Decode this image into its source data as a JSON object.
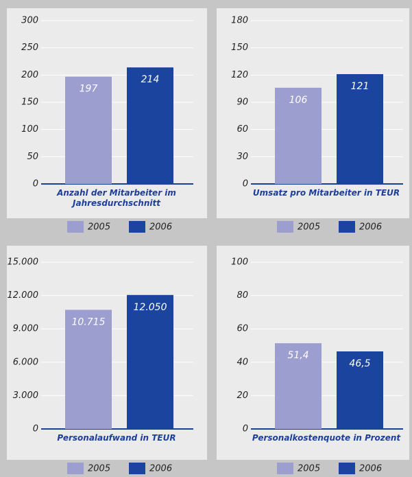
{
  "chart_data": [
    {
      "type": "bar",
      "title": "Anzahl der Mitarbeiter im Jahresdurchschnitt",
      "series": [
        {
          "name": "2005",
          "color": "#9c9ed0",
          "values": [
            197
          ]
        },
        {
          "name": "2006",
          "color": "#1b449e",
          "values": [
            214
          ]
        }
      ],
      "ylim": [
        0,
        300
      ],
      "yticks": [
        0,
        50,
        100,
        150,
        200,
        250,
        300
      ],
      "grid": true
    },
    {
      "type": "bar",
      "title": "Umsatz pro Mitarbeiter in TEUR",
      "series": [
        {
          "name": "2005",
          "color": "#9c9ed0",
          "values": [
            106
          ]
        },
        {
          "name": "2006",
          "color": "#1b449e",
          "values": [
            121
          ]
        }
      ],
      "ylim": [
        0,
        180
      ],
      "yticks": [
        0,
        30,
        60,
        90,
        120,
        150,
        180
      ],
      "grid": true
    },
    {
      "type": "bar",
      "title": "Personalaufwand in TEUR",
      "series": [
        {
          "name": "2005",
          "color": "#9c9ed0",
          "values": [
            10715
          ],
          "value_labels": [
            "10.715"
          ]
        },
        {
          "name": "2006",
          "color": "#1b449e",
          "values": [
            12050
          ],
          "value_labels": [
            "12.050"
          ]
        }
      ],
      "ylim": [
        0,
        15000
      ],
      "yticks": [
        0,
        {
          "value": 3000,
          "label": "3.000"
        },
        {
          "value": 6000,
          "label": "6.000"
        },
        {
          "value": 9000,
          "label": "9.000"
        },
        {
          "value": 12000,
          "label": "12.000"
        },
        {
          "value": 15000,
          "label": "15.000"
        }
      ],
      "grid": true
    },
    {
      "type": "bar",
      "title": "Personalkostenquote in Prozent",
      "series": [
        {
          "name": "2005",
          "color": "#9c9ed0",
          "values": [
            51.4
          ],
          "value_labels": [
            "51,4"
          ]
        },
        {
          "name": "2006",
          "color": "#1b449e",
          "values": [
            46.5
          ],
          "value_labels": [
            "46,5"
          ]
        }
      ],
      "ylim": [
        0,
        100
      ],
      "yticks": [
        0,
        20,
        40,
        60,
        80,
        100
      ],
      "grid": true
    }
  ]
}
